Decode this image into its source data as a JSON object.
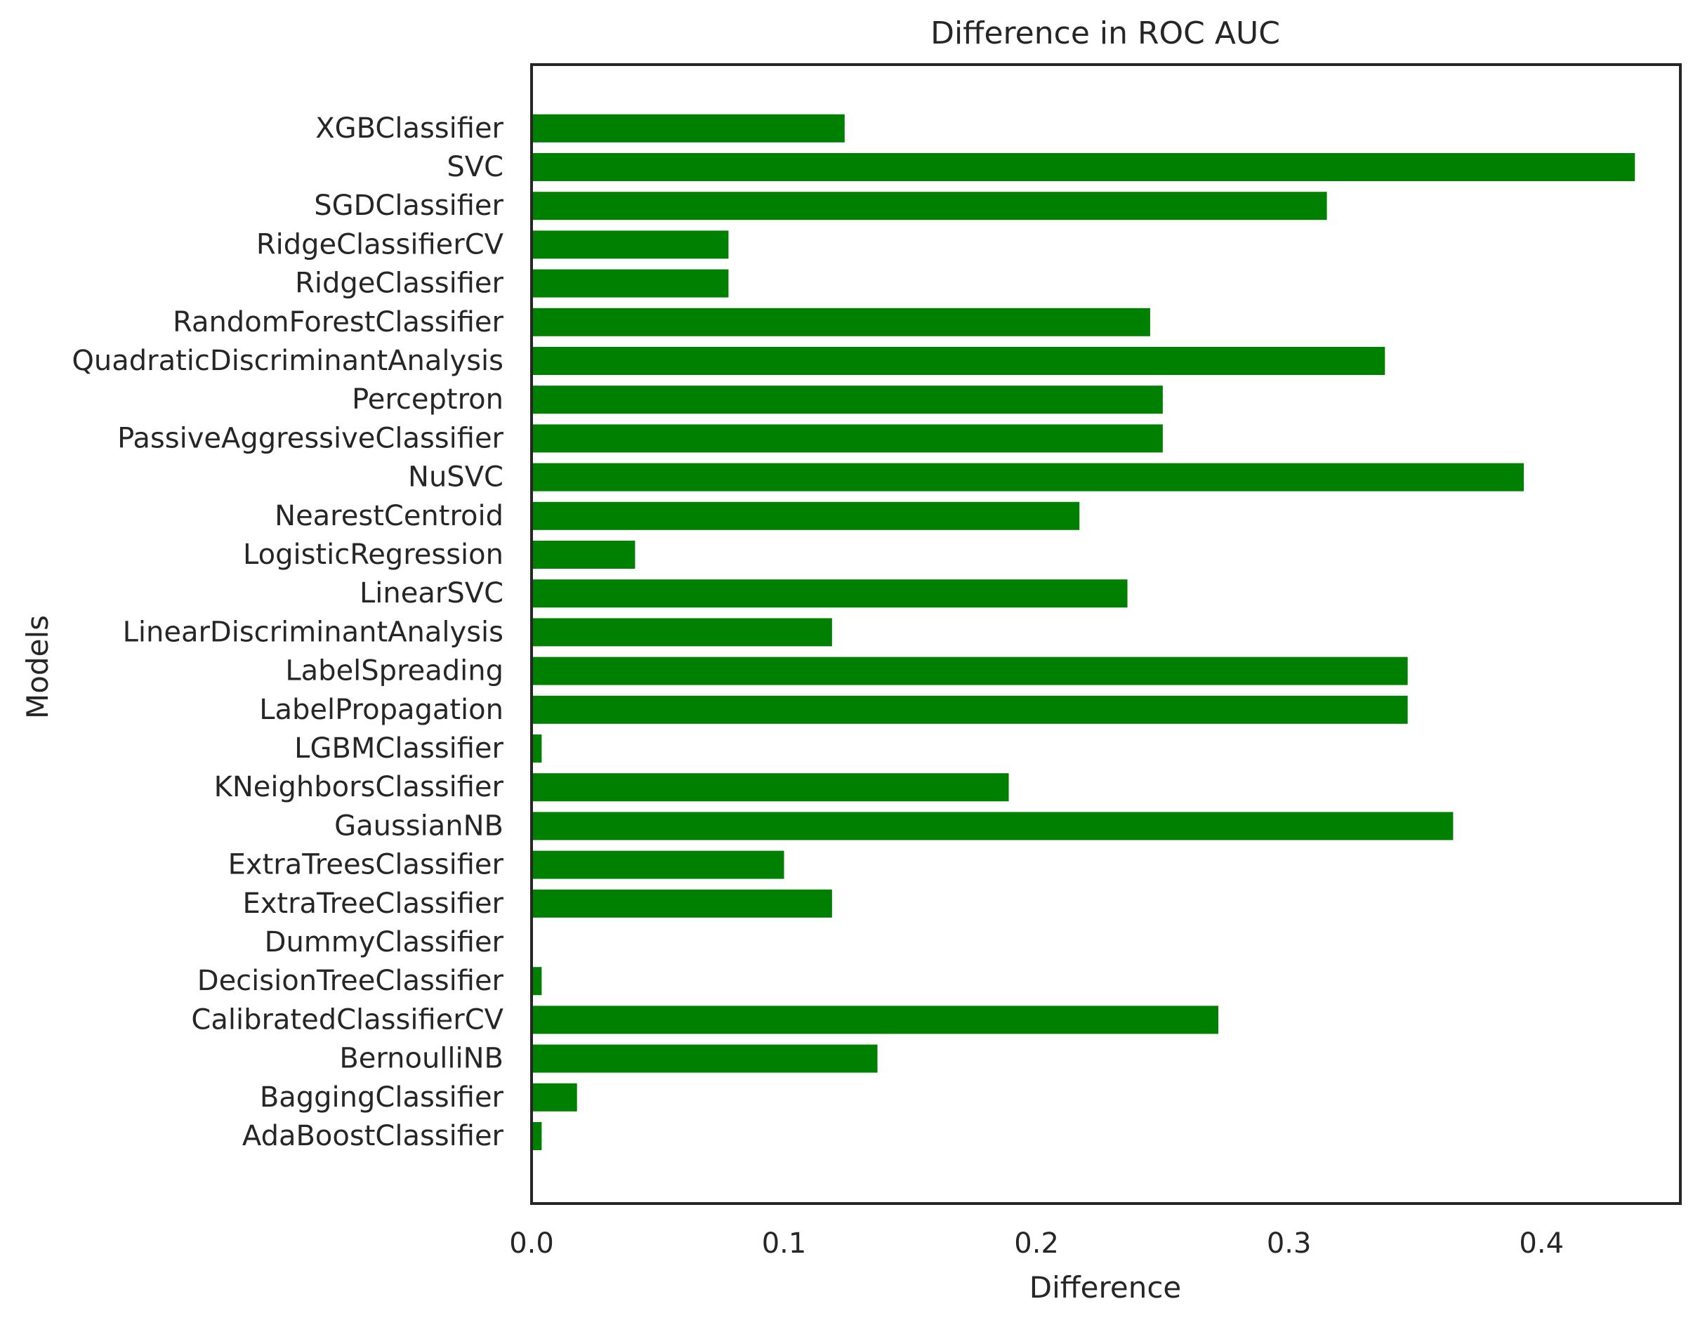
{
  "chart_data": {
    "type": "bar",
    "orientation": "horizontal",
    "title": "Difference in ROC AUC",
    "xlabel": "Difference",
    "ylabel": "Models",
    "xlim": [
      0.0,
      0.455
    ],
    "xticks": [
      0.0,
      0.1,
      0.2,
      0.3,
      0.4
    ],
    "xtick_labels": [
      "0.0",
      "0.1",
      "0.2",
      "0.3",
      "0.4"
    ],
    "grid": false,
    "bar_color": "#008000",
    "categories": [
      "AdaBoostClassifier",
      "BaggingClassifier",
      "BernoulliNB",
      "CalibratedClassifierCV",
      "DecisionTreeClassifier",
      "DummyClassifier",
      "ExtraTreeClassifier",
      "ExtraTreesClassifier",
      "GaussianNB",
      "KNeighborsClassifier",
      "LGBMClassifier",
      "LabelPropagation",
      "LabelSpreading",
      "LinearDiscriminantAnalysis",
      "LinearSVC",
      "LogisticRegression",
      "NearestCentroid",
      "NuSVC",
      "PassiveAggressiveClassifier",
      "Perceptron",
      "QuadraticDiscriminantAnalysis",
      "RandomForestClassifier",
      "RidgeClassifier",
      "RidgeClassifierCV",
      "SGDClassifier",
      "SVC",
      "XGBClassifier"
    ],
    "values": [
      0.004,
      0.018,
      0.137,
      0.272,
      0.004,
      0.0,
      0.119,
      0.1,
      0.365,
      0.189,
      0.004,
      0.347,
      0.347,
      0.119,
      0.236,
      0.041,
      0.217,
      0.393,
      0.25,
      0.25,
      0.338,
      0.245,
      0.078,
      0.078,
      0.315,
      0.437,
      0.124
    ]
  }
}
